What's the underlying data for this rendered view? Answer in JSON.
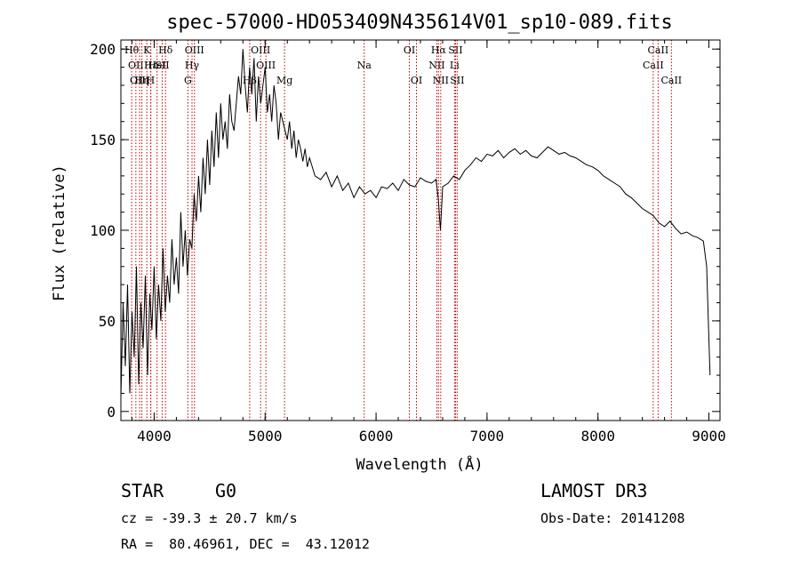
{
  "chart_data": {
    "type": "line",
    "title": "spec-57000-HD053409N435614V01_sp10-089.fits",
    "xlabel": "Wavelength (Å)",
    "ylabel": "Flux (relative)",
    "xlim": [
      3700,
      9100
    ],
    "ylim": [
      -5,
      205
    ],
    "xticks": [
      4000,
      5000,
      6000,
      7000,
      8000,
      9000
    ],
    "yticks": [
      0,
      50,
      100,
      150,
      200
    ],
    "series": [
      {
        "x": [
          3700,
          3720,
          3740,
          3760,
          3780,
          3800,
          3820,
          3840,
          3860,
          3880,
          3900,
          3920,
          3940,
          3960,
          3980,
          4000,
          4020,
          4040,
          4060,
          4080,
          4100,
          4120,
          4140,
          4160,
          4180,
          4200,
          4220,
          4240,
          4260,
          4280,
          4300,
          4320,
          4340,
          4360,
          4380,
          4400,
          4420,
          4440,
          4460,
          4480,
          4500,
          4520,
          4540,
          4560,
          4580,
          4600,
          4620,
          4640,
          4660,
          4680,
          4700,
          4720,
          4740,
          4760,
          4780,
          4800,
          4820,
          4840,
          4860,
          4880,
          4900,
          4920,
          4940,
          4960,
          4980,
          5000,
          5020,
          5040,
          5060,
          5080,
          5100,
          5120,
          5140,
          5160,
          5180,
          5200,
          5220,
          5240,
          5260,
          5280,
          5300,
          5320,
          5340,
          5360,
          5380,
          5400,
          5450,
          5500,
          5550,
          5600,
          5650,
          5700,
          5750,
          5800,
          5850,
          5900,
          5950,
          6000,
          6050,
          6100,
          6150,
          6200,
          6250,
          6300,
          6350,
          6400,
          6450,
          6500,
          6540,
          6560,
          6580,
          6600,
          6650,
          6700,
          6750,
          6800,
          6850,
          6900,
          6950,
          7000,
          7050,
          7100,
          7150,
          7200,
          7250,
          7300,
          7350,
          7400,
          7450,
          7500,
          7550,
          7600,
          7650,
          7700,
          7750,
          7800,
          7850,
          7900,
          7950,
          8000,
          8050,
          8100,
          8150,
          8200,
          8250,
          8300,
          8350,
          8400,
          8450,
          8500,
          8550,
          8600,
          8650,
          8700,
          8750,
          8800,
          8850,
          8900,
          8950,
          8980,
          9000,
          9010
        ],
        "y": [
          8,
          60,
          25,
          70,
          10,
          55,
          30,
          80,
          15,
          60,
          35,
          75,
          20,
          65,
          45,
          80,
          40,
          70,
          50,
          90,
          55,
          75,
          60,
          95,
          70,
          85,
          65,
          110,
          80,
          100,
          75,
          95,
          90,
          120,
          105,
          130,
          110,
          140,
          120,
          150,
          125,
          155,
          135,
          165,
          140,
          170,
          150,
          160,
          145,
          175,
          160,
          155,
          170,
          185,
          175,
          200,
          180,
          165,
          190,
          175,
          195,
          160,
          185,
          170,
          180,
          190,
          165,
          175,
          160,
          180,
          170,
          150,
          165,
          160,
          155,
          150,
          160,
          145,
          155,
          140,
          150,
          145,
          138,
          145,
          135,
          140,
          130,
          128,
          132,
          124,
          130,
          122,
          126,
          118,
          124,
          120,
          122,
          118,
          124,
          123,
          126,
          122,
          128,
          125,
          124,
          129,
          127,
          126,
          128,
          118,
          100,
          124,
          126,
          130,
          128,
          133,
          136,
          140,
          138,
          142,
          141,
          144,
          140,
          143,
          145,
          142,
          144,
          141,
          140,
          143,
          146,
          144,
          142,
          143,
          141,
          140,
          138,
          136,
          135,
          133,
          130,
          128,
          126,
          124,
          120,
          118,
          115,
          112,
          110,
          108,
          104,
          102,
          105,
          101,
          98,
          99,
          97,
          96,
          94,
          80,
          40,
          20
        ]
      }
    ],
    "line_markers": [
      {
        "wl": 3797,
        "label": "Hθ",
        "row": 0
      },
      {
        "wl": 3835,
        "label": "OII",
        "row": 1
      },
      {
        "wl": 3869,
        "label": "OIII",
        "row": 2
      },
      {
        "wl": 3889,
        "label": "Hη",
        "row": 2
      },
      {
        "wl": 3934,
        "label": "K",
        "row": 0
      },
      {
        "wl": 3968,
        "label": "H",
        "row": 2
      },
      {
        "wl": 3970,
        "label": "Hε",
        "row": 1
      },
      {
        "wl": 4026,
        "label": "HeI",
        "row": 1
      },
      {
        "wl": 4072,
        "label": "SII",
        "row": 1
      },
      {
        "wl": 4102,
        "label": "Hδ",
        "row": 0
      },
      {
        "wl": 4304,
        "label": "G",
        "row": 2
      },
      {
        "wl": 4341,
        "label": "Hγ",
        "row": 1
      },
      {
        "wl": 4363,
        "label": "OIII",
        "row": 0
      },
      {
        "wl": 4861,
        "label": "Hβ",
        "row": 2
      },
      {
        "wl": 4959,
        "label": "OIII",
        "row": 0
      },
      {
        "wl": 5007,
        "label": "OIII",
        "row": 1
      },
      {
        "wl": 5175,
        "label": "Mg",
        "row": 2
      },
      {
        "wl": 5893,
        "label": "Na",
        "row": 1
      },
      {
        "wl": 6300,
        "label": "OI",
        "row": 0
      },
      {
        "wl": 6364,
        "label": "OI",
        "row": 2
      },
      {
        "wl": 6548,
        "label": "NII",
        "row": 1
      },
      {
        "wl": 6563,
        "label": "Hα",
        "row": 0
      },
      {
        "wl": 6583,
        "label": "NII",
        "row": 2
      },
      {
        "wl": 6707,
        "label": "Li",
        "row": 1
      },
      {
        "wl": 6716,
        "label": "SII",
        "row": 0
      },
      {
        "wl": 6731,
        "label": "SII",
        "row": 2
      },
      {
        "wl": 8498,
        "label": "CaII",
        "row": 1
      },
      {
        "wl": 8542,
        "label": "CaII",
        "row": 0
      },
      {
        "wl": 8662,
        "label": "CaII",
        "row": 2
      }
    ],
    "line_color": "#c00000"
  },
  "info": {
    "obj_class": "STAR",
    "subclass": "G0",
    "survey": "LAMOST DR3",
    "redshift": "cz = -39.3 ± 20.7 km/s",
    "obs_date": "Obs-Date: 20141208",
    "coords": "RA =  80.46961, DEC =  43.12012"
  }
}
